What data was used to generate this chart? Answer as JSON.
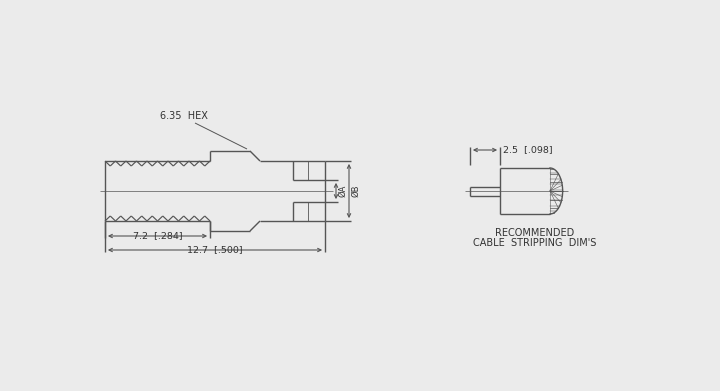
{
  "bg_color": "#ebebeb",
  "line_color": "#555555",
  "text_color": "#333333",
  "font_size_label": 7.0,
  "font_size_dim": 6.8,
  "hex_label": "6.35  HEX",
  "dim_127_label": "12.7  [.500]",
  "dim_72_label": "7.2  [.284]",
  "dim_25_label": "2.5  [.098]",
  "dim_A_label": "ØA",
  "dim_B_label": "ØB",
  "rec_line1": "RECOMMENDED",
  "rec_line2": "CABLE  STRIPPING  DIM'S"
}
